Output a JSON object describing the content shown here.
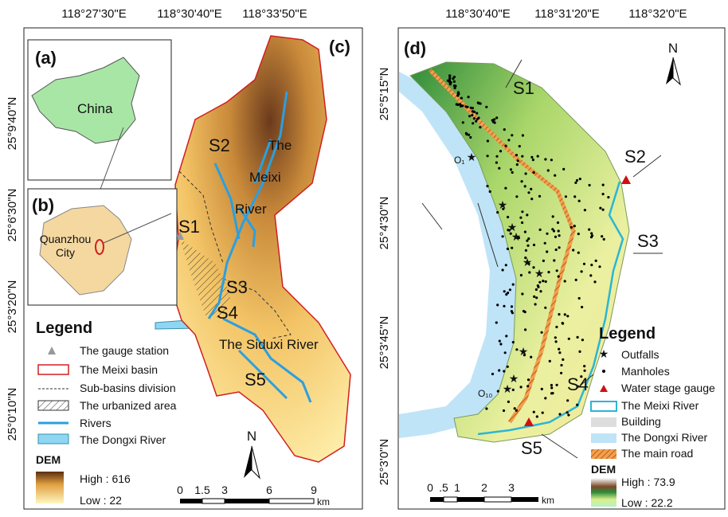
{
  "panel_c": {
    "top_coords": [
      "118°27'30\"E",
      "118°30'40\"E",
      "118°33'50\"E"
    ],
    "left_coords": [
      "25°9'40\"N",
      "25°6'30\"N",
      "25°3'20\"N",
      "25°0'10\"N"
    ],
    "inset_a": {
      "label": "(a)",
      "country": "China"
    },
    "inset_b": {
      "label": "(b)",
      "city": [
        "Quanzhou",
        "City"
      ]
    },
    "label": "(c)",
    "subbasins": [
      "S1",
      "S2",
      "S3",
      "S4",
      "S5"
    ],
    "river_labels": [
      "The",
      "Meixi",
      "River",
      "The Siduxi River"
    ],
    "legend": {
      "title": "Legend",
      "items": [
        "The gauge station",
        "The Meixi basin",
        "Sub-basins division",
        "The urbanized area",
        "Rivers",
        "The Dongxi River"
      ]
    },
    "dem": {
      "title": "DEM",
      "high": "High : 616",
      "low": "Low : 22"
    },
    "scale": {
      "ticks": [
        "0",
        "1.5",
        "3",
        "6",
        "9"
      ],
      "unit": "km"
    },
    "north": "N"
  },
  "panel_d": {
    "top_coords": [
      "118°30'40\"E",
      "118°31'20\"E",
      "118°32'0\"E"
    ],
    "left_coords": [
      "25°5'15\"N",
      "25°4'30\"N",
      "25°3'45\"N",
      "25°3'0\"N"
    ],
    "label": "(d)",
    "subbasins": [
      "S1",
      "S2",
      "S3",
      "S4",
      "S5"
    ],
    "outfall_labels": [
      "O₁",
      "O₁₀"
    ],
    "legend": {
      "title": "Legend",
      "items": [
        "Outfalls",
        "Manholes",
        "Water stage gauge",
        "The Meixi River",
        "Building",
        "The Dongxi River",
        "The main road"
      ]
    },
    "dem": {
      "title": "DEM",
      "high": "High : 73.9",
      "low": "Low : 22.2"
    },
    "scale": {
      "ticks": [
        "0",
        ".5",
        "1",
        "2",
        "3"
      ],
      "unit": "km"
    },
    "north": "N"
  }
}
